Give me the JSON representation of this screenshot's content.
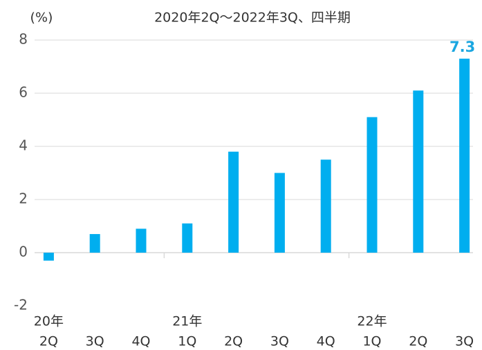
{
  "chart_data": {
    "type": "bar",
    "subtitle": "2020年2Q～2022年3Q、四半期",
    "y_label": "(%)",
    "categories": [
      "2Q",
      "3Q",
      "4Q",
      "1Q",
      "2Q",
      "3Q",
      "4Q",
      "1Q",
      "2Q",
      "3Q"
    ],
    "year_labels": [
      "20年",
      null,
      null,
      "21年",
      null,
      null,
      null,
      "22年",
      null,
      null
    ],
    "values": [
      -0.3,
      0.7,
      0.9,
      1.1,
      3.8,
      3.0,
      3.5,
      5.1,
      6.1,
      7.3
    ],
    "value_labels": [
      null,
      null,
      null,
      null,
      null,
      null,
      null,
      null,
      null,
      "7.3"
    ],
    "color": "#00aeef",
    "ylim": [
      -2,
      8
    ],
    "yticks": [
      -2,
      0,
      2,
      4,
      6,
      8
    ],
    "grid": true
  }
}
